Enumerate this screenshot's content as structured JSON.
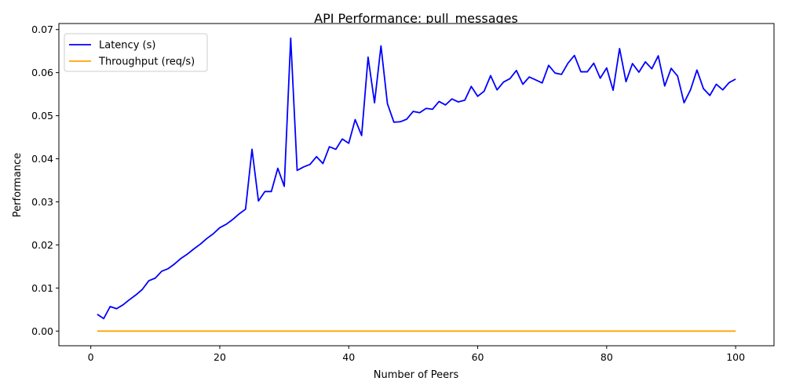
{
  "chart_data": {
    "type": "line",
    "title": "API Performance: pull_messages",
    "xlabel": "Number of Peers",
    "ylabel": "Performance",
    "xlim": [
      -4.95,
      105.95
    ],
    "ylim": [
      -0.0034,
      0.0714
    ],
    "x_ticks": [
      0,
      20,
      40,
      60,
      80,
      100
    ],
    "x_tick_labels": [
      "0",
      "20",
      "40",
      "60",
      "80",
      "100"
    ],
    "y_ticks": [
      0.0,
      0.01,
      0.02,
      0.03,
      0.04,
      0.05,
      0.06,
      0.07
    ],
    "y_tick_labels": [
      "0.00",
      "0.01",
      "0.02",
      "0.03",
      "0.04",
      "0.05",
      "0.06",
      "0.07"
    ],
    "grid": false,
    "legend_position": "top-left",
    "x": [
      1,
      2,
      3,
      4,
      5,
      6,
      7,
      8,
      9,
      10,
      11,
      12,
      13,
      14,
      15,
      16,
      17,
      18,
      19,
      20,
      21,
      22,
      23,
      24,
      25,
      26,
      27,
      28,
      29,
      30,
      31,
      32,
      33,
      34,
      35,
      36,
      37,
      38,
      39,
      40,
      41,
      42,
      43,
      44,
      45,
      46,
      47,
      48,
      49,
      50,
      51,
      52,
      53,
      54,
      55,
      56,
      57,
      58,
      59,
      60,
      61,
      62,
      63,
      64,
      65,
      66,
      67,
      68,
      69,
      70,
      71,
      72,
      73,
      74,
      75,
      76,
      77,
      78,
      79,
      80,
      81,
      82,
      83,
      84,
      85,
      86,
      87,
      88,
      89,
      90,
      91,
      92,
      93,
      94,
      95,
      96,
      97,
      98,
      99,
      100
    ],
    "series": [
      {
        "name": "Latency (s)",
        "color": "#0000ff",
        "values": [
          0.0039,
          0.0029,
          0.0057,
          0.0052,
          0.0061,
          0.0073,
          0.0084,
          0.0097,
          0.0117,
          0.0123,
          0.0139,
          0.0145,
          0.0156,
          0.0169,
          0.0179,
          0.0191,
          0.0202,
          0.0215,
          0.0226,
          0.024,
          0.0248,
          0.0259,
          0.0272,
          0.0283,
          0.0422,
          0.0302,
          0.0324,
          0.0324,
          0.0378,
          0.0336,
          0.068,
          0.0373,
          0.0381,
          0.0387,
          0.0405,
          0.0389,
          0.0428,
          0.0422,
          0.0446,
          0.0436,
          0.0491,
          0.0454,
          0.0636,
          0.053,
          0.0662,
          0.0528,
          0.0485,
          0.0486,
          0.0492,
          0.051,
          0.0507,
          0.0517,
          0.0515,
          0.0533,
          0.0525,
          0.0539,
          0.0532,
          0.0536,
          0.0568,
          0.0545,
          0.0557,
          0.0593,
          0.056,
          0.0578,
          0.0586,
          0.0605,
          0.0573,
          0.059,
          0.0583,
          0.0576,
          0.0617,
          0.0599,
          0.0596,
          0.0622,
          0.064,
          0.0602,
          0.0602,
          0.0622,
          0.0587,
          0.0611,
          0.0559,
          0.0656,
          0.0579,
          0.0621,
          0.0601,
          0.0625,
          0.0609,
          0.0639,
          0.0569,
          0.061,
          0.0592,
          0.053,
          0.056,
          0.0606,
          0.0563,
          0.0547,
          0.0573,
          0.056,
          0.0577,
          0.0585
        ]
      },
      {
        "name": "Throughput (req/s)",
        "color": "#ffa500",
        "values": [
          0,
          0,
          0,
          0,
          0,
          0,
          0,
          0,
          0,
          0,
          0,
          0,
          0,
          0,
          0,
          0,
          0,
          0,
          0,
          0,
          0,
          0,
          0,
          0,
          0,
          0,
          0,
          0,
          0,
          0,
          0,
          0,
          0,
          0,
          0,
          0,
          0,
          0,
          0,
          0,
          0,
          0,
          0,
          0,
          0,
          0,
          0,
          0,
          0,
          0,
          0,
          0,
          0,
          0,
          0,
          0,
          0,
          0,
          0,
          0,
          0,
          0,
          0,
          0,
          0,
          0,
          0,
          0,
          0,
          0,
          0,
          0,
          0,
          0,
          0,
          0,
          0,
          0,
          0,
          0,
          0,
          0,
          0,
          0,
          0,
          0,
          0,
          0,
          0,
          0,
          0,
          0,
          0,
          0,
          0,
          0,
          0,
          0,
          0,
          0
        ]
      }
    ]
  }
}
